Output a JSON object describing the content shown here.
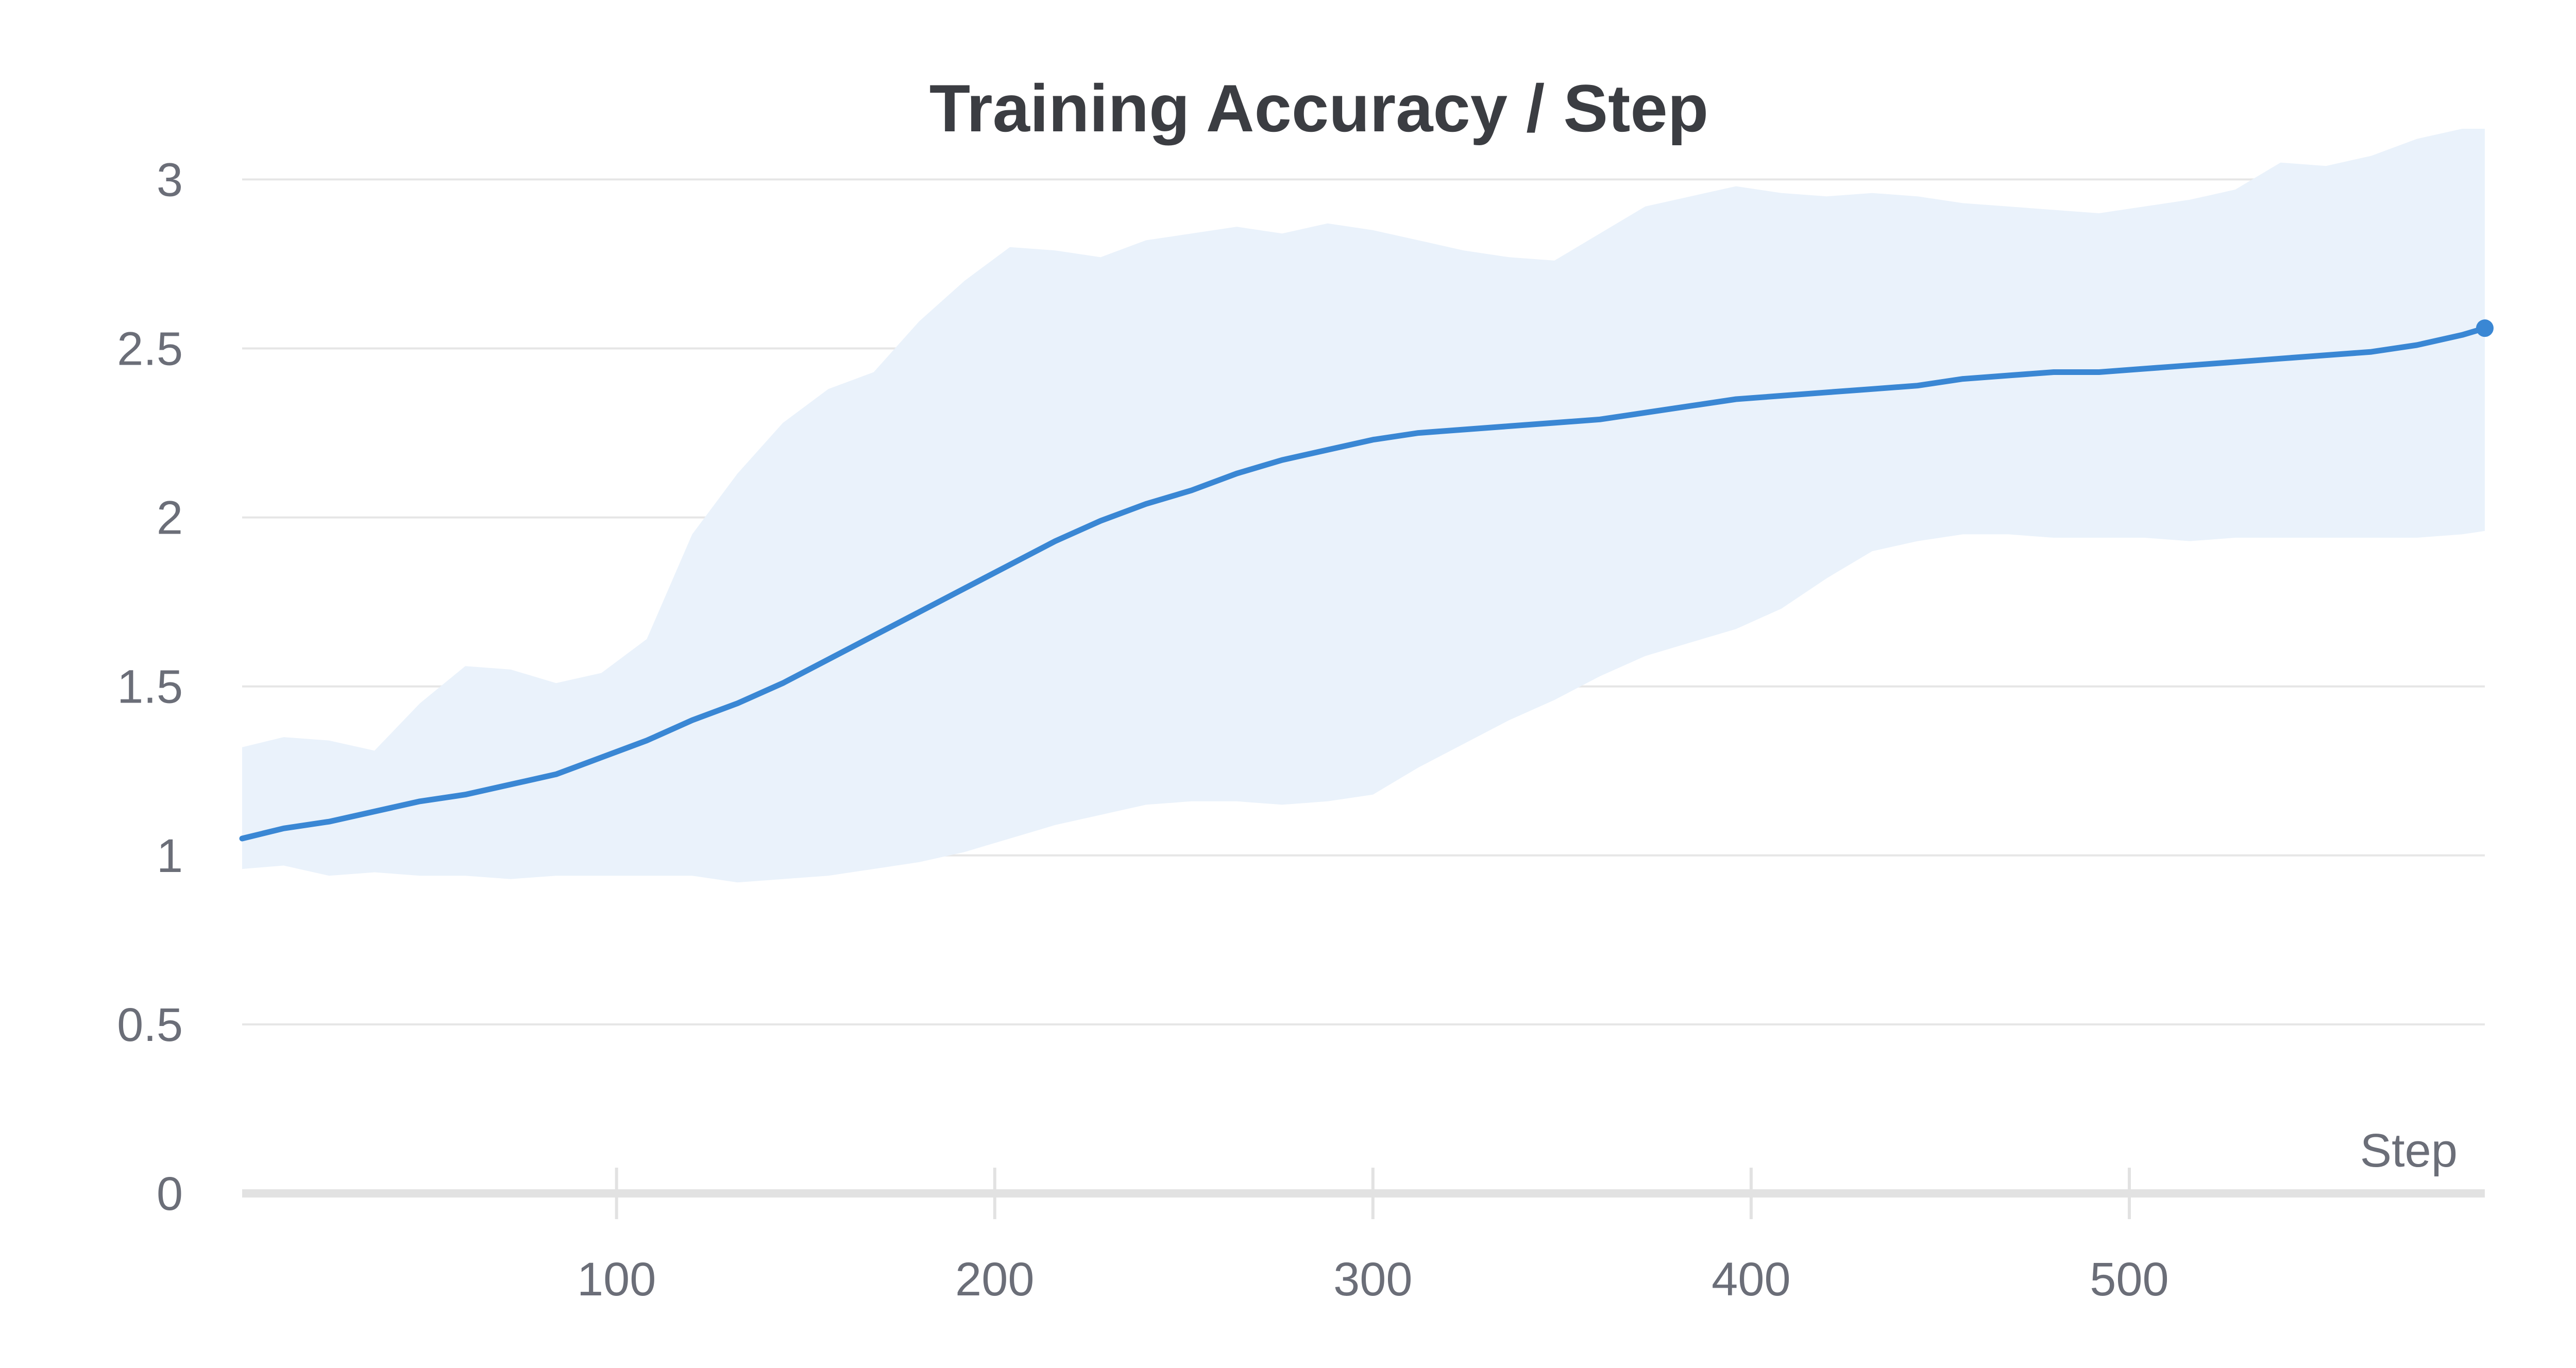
{
  "chart_data": {
    "type": "line",
    "title": "Training Accuracy / Step",
    "xlabel": "Step",
    "ylabel": "",
    "xlim": [
      1,
      594
    ],
    "ylim": [
      0,
      3.15
    ],
    "x_ticks": [
      100,
      200,
      300,
      400,
      500
    ],
    "y_ticks": [
      0,
      0.5,
      1,
      1.5,
      2,
      2.5,
      3
    ],
    "grid": true,
    "legend": "none",
    "colors": {
      "line": "#3a87d4",
      "band": "#eaf2fb",
      "grid": "#e6e6e6",
      "axis": "#e2e2e2"
    },
    "series": [
      {
        "x": [
          1,
          12,
          24,
          36,
          48,
          60,
          72,
          84,
          96,
          108,
          120,
          132,
          144,
          156,
          168,
          180,
          192,
          204,
          216,
          228,
          240,
          252,
          264,
          276,
          288,
          300,
          312,
          324,
          336,
          348,
          360,
          372,
          384,
          396,
          408,
          420,
          432,
          444,
          456,
          468,
          480,
          492,
          504,
          516,
          528,
          540,
          552,
          564,
          576,
          588,
          594
        ],
        "y": [
          1.05,
          1.08,
          1.1,
          1.13,
          1.16,
          1.18,
          1.21,
          1.24,
          1.29,
          1.34,
          1.4,
          1.45,
          1.51,
          1.58,
          1.65,
          1.72,
          1.79,
          1.86,
          1.93,
          1.99,
          2.04,
          2.08,
          2.13,
          2.17,
          2.2,
          2.23,
          2.25,
          2.26,
          2.27,
          2.28,
          2.29,
          2.31,
          2.33,
          2.35,
          2.36,
          2.37,
          2.38,
          2.39,
          2.41,
          2.42,
          2.43,
          2.43,
          2.44,
          2.45,
          2.46,
          2.47,
          2.48,
          2.49,
          2.51,
          2.54,
          2.56
        ],
        "upper": [
          1.32,
          1.35,
          1.34,
          1.31,
          1.45,
          1.56,
          1.55,
          1.51,
          1.54,
          1.64,
          1.95,
          2.13,
          2.28,
          2.38,
          2.43,
          2.58,
          2.7,
          2.8,
          2.79,
          2.77,
          2.82,
          2.84,
          2.86,
          2.84,
          2.87,
          2.85,
          2.82,
          2.79,
          2.77,
          2.76,
          2.84,
          2.92,
          2.95,
          2.98,
          2.96,
          2.95,
          2.96,
          2.95,
          2.93,
          2.92,
          2.91,
          2.9,
          2.92,
          2.94,
          2.97,
          3.05,
          3.04,
          3.07,
          3.12,
          3.15,
          3.15
        ],
        "lower": [
          0.96,
          0.97,
          0.94,
          0.95,
          0.94,
          0.94,
          0.93,
          0.94,
          0.94,
          0.94,
          0.94,
          0.92,
          0.93,
          0.94,
          0.96,
          0.98,
          1.01,
          1.05,
          1.09,
          1.12,
          1.15,
          1.16,
          1.16,
          1.15,
          1.16,
          1.18,
          1.26,
          1.33,
          1.4,
          1.46,
          1.53,
          1.59,
          1.63,
          1.67,
          1.73,
          1.82,
          1.9,
          1.93,
          1.95,
          1.95,
          1.94,
          1.94,
          1.94,
          1.93,
          1.94,
          1.94,
          1.94,
          1.94,
          1.94,
          1.95,
          1.96
        ]
      }
    ]
  }
}
